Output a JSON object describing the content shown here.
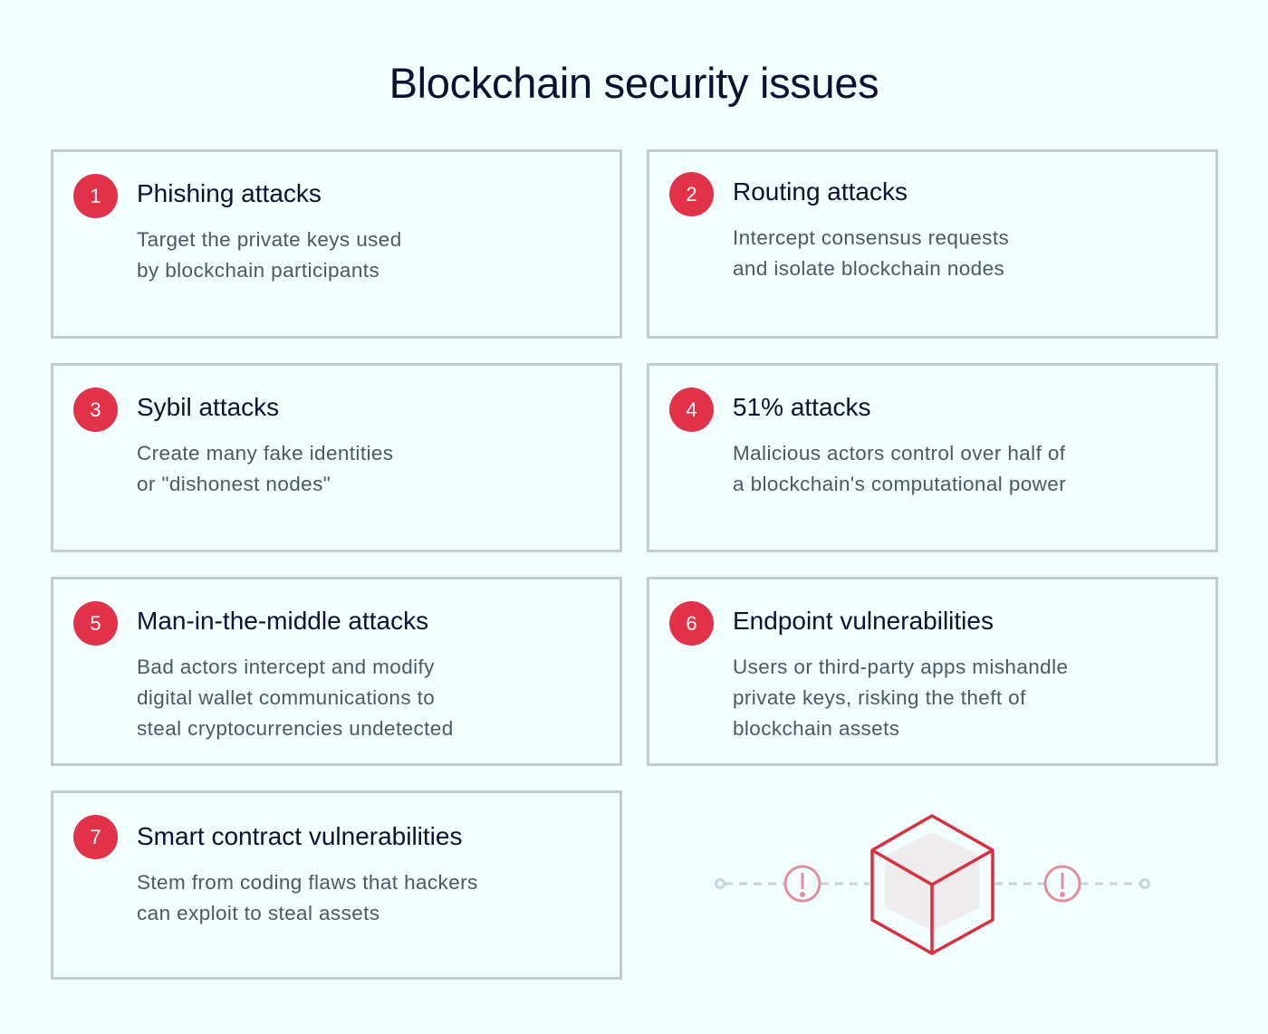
{
  "title": "Blockchain security issues",
  "cards": [
    {
      "number": "1",
      "title": "Phishing attacks",
      "description": "Target the private keys used\nby blockchain participants"
    },
    {
      "number": "2",
      "title": "Routing attacks",
      "description": "Intercept consensus requests\nand isolate blockchain nodes"
    },
    {
      "number": "3",
      "title": "Sybil attacks",
      "description": "Create many fake identities\nor \"dishonest nodes\""
    },
    {
      "number": "4",
      "title": "51% attacks",
      "description": "Malicious actors control over half of\na blockchain's computational power"
    },
    {
      "number": "5",
      "title": "Man-in-the-middle attacks",
      "description": "Bad actors intercept and modify\ndigital wallet communications to\nsteal cryptocurrencies undetected"
    },
    {
      "number": "6",
      "title": "Endpoint vulnerabilities",
      "description": "Users or third-party apps mishandle\nprivate keys, risking the theft of\nblockchain assets"
    },
    {
      "number": "7",
      "title": "Smart contract vulnerabilities",
      "description": "Stem from coding flaws that hackers\ncan exploit to steal assets"
    }
  ],
  "colors": {
    "accent": "#e2324a",
    "background": "#f1fdfe",
    "border": "#c2cccd",
    "title": "#0b1133",
    "text": "#4d5866"
  },
  "illustration": {
    "icons": [
      "cube-icon",
      "alert-icon",
      "alert-icon"
    ]
  }
}
